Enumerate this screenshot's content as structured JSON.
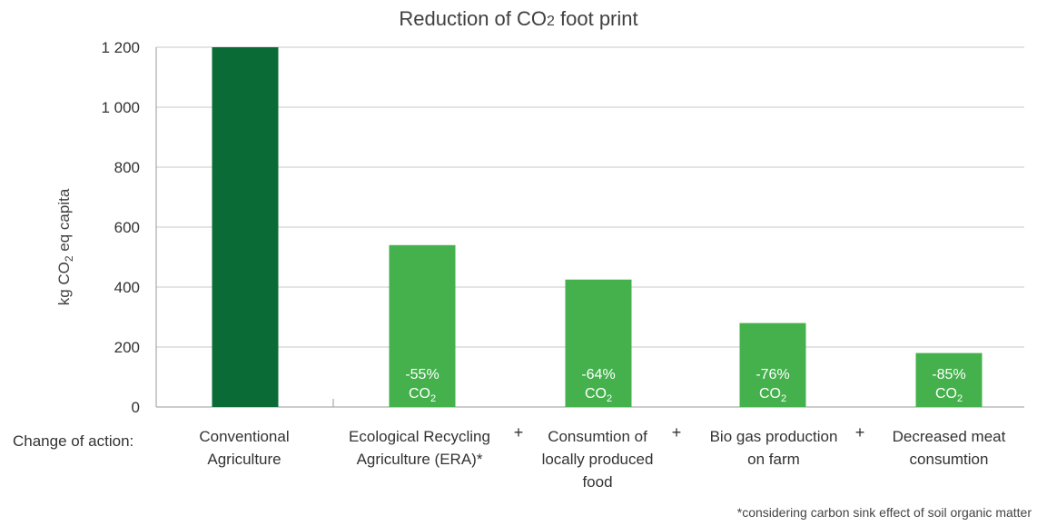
{
  "chart_data": {
    "type": "bar",
    "title": "Reduction of CO2 foot print",
    "ylabel": "kg CO2 eq capita",
    "ylim": [
      0,
      1200
    ],
    "yticks": [
      0,
      200,
      400,
      600,
      800,
      1000,
      1200
    ],
    "ytick_labels": [
      "0",
      "200",
      "400",
      "600",
      "800",
      "1 000",
      "1 200"
    ],
    "grid": true,
    "x_row_label": "Change of action:",
    "categories": [
      "Conventional\nAgriculture",
      "Ecological Recycling\nAgriculture (ERA)*",
      "Consumtion of\nlocally produced\nfood",
      "Bio gas production\non farm",
      "Decreased meat\nconsumtion"
    ],
    "values": [
      1200,
      540,
      425,
      280,
      180
    ],
    "bar_labels": [
      "",
      "-55%\nCO2",
      "-64%\nCO2",
      "-76%\nCO2",
      "-85%\nCO2"
    ],
    "separators": [
      "+",
      "+",
      "+"
    ],
    "colors": {
      "baseline": "#0a6b36",
      "reduced": "#45b14d",
      "label_text": "#ffffff",
      "grid": "#c8c8c8",
      "axis": "#999999"
    },
    "footnote": "*considering carbon sink effect of soil organic matter"
  }
}
